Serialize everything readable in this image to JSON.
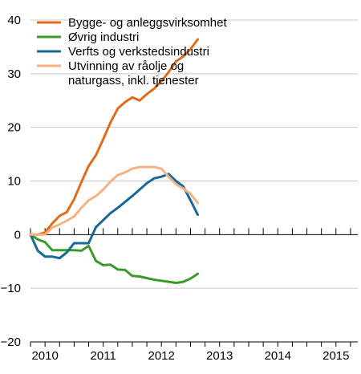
{
  "chart_data": {
    "type": "line",
    "title": "",
    "xlabel": "",
    "ylabel": "",
    "ylim": [
      -20,
      40
    ],
    "y_ticks": [
      -20,
      -10,
      0,
      10,
      20,
      30,
      40
    ],
    "x_range": [
      2009.75,
      2015.375
    ],
    "x_tick_labels": [
      {
        "label": "2010",
        "x": 2010.0
      },
      {
        "label": "2011",
        "x": 2011.0
      },
      {
        "label": "2012",
        "x": 2012.0
      },
      {
        "label": "2013",
        "x": 2013.0
      },
      {
        "label": "2014",
        "x": 2014.0
      },
      {
        "label": "2015",
        "x": 2015.0
      }
    ],
    "grid": "horizontal",
    "legend": "top-left",
    "series": [
      {
        "name": "Bygge- og anleggsvirksomhet",
        "color": "#e06c1a",
        "points": [
          [
            2009.75,
            0
          ],
          [
            2009.875,
            0
          ],
          [
            2010.0,
            0.4
          ],
          [
            2010.125,
            2.1
          ],
          [
            2010.25,
            3.5
          ],
          [
            2010.375,
            4.2
          ],
          [
            2010.5,
            6.6
          ],
          [
            2010.625,
            9.8
          ],
          [
            2010.75,
            12.8
          ],
          [
            2010.875,
            14.8
          ],
          [
            2011.0,
            17.8
          ],
          [
            2011.125,
            20.9
          ],
          [
            2011.25,
            23.5
          ],
          [
            2011.375,
            24.7
          ],
          [
            2011.5,
            25.6
          ],
          [
            2011.625,
            25.0
          ],
          [
            2011.75,
            26.2
          ],
          [
            2011.875,
            27.2
          ],
          [
            2012.0,
            28.6
          ],
          [
            2012.125,
            30.3
          ],
          [
            2012.25,
            32.3
          ],
          [
            2012.375,
            33.2
          ],
          [
            2012.5,
            34.6
          ],
          [
            2012.625,
            36.4
          ]
        ]
      },
      {
        "name": "Øvrig industri",
        "color": "#3a9a2a",
        "points": [
          [
            2009.75,
            0
          ],
          [
            2009.875,
            -0.9
          ],
          [
            2010.0,
            -1.4
          ],
          [
            2010.125,
            -2.9
          ],
          [
            2010.25,
            -2.9
          ],
          [
            2010.375,
            -2.9
          ],
          [
            2010.5,
            -2.9
          ],
          [
            2010.625,
            -3.0
          ],
          [
            2010.75,
            -2.1
          ],
          [
            2010.875,
            -4.9
          ],
          [
            2011.0,
            -5.7
          ],
          [
            2011.125,
            -5.6
          ],
          [
            2011.25,
            -6.5
          ],
          [
            2011.375,
            -6.6
          ],
          [
            2011.5,
            -7.7
          ],
          [
            2011.625,
            -7.8
          ],
          [
            2011.75,
            -8.1
          ],
          [
            2011.875,
            -8.4
          ],
          [
            2012.0,
            -8.6
          ],
          [
            2012.125,
            -8.8
          ],
          [
            2012.25,
            -9.0
          ],
          [
            2012.375,
            -8.8
          ],
          [
            2012.5,
            -8.2
          ],
          [
            2012.625,
            -7.3
          ]
        ]
      },
      {
        "name": "Verfts og verkstedsindustri",
        "color": "#1a6896",
        "points": [
          [
            2009.75,
            0
          ],
          [
            2009.875,
            -3.0
          ],
          [
            2010.0,
            -4.1
          ],
          [
            2010.125,
            -4.1
          ],
          [
            2010.25,
            -4.4
          ],
          [
            2010.375,
            -3.3
          ],
          [
            2010.5,
            -1.6
          ],
          [
            2010.625,
            -1.6
          ],
          [
            2010.75,
            -1.6
          ],
          [
            2010.875,
            1.4
          ],
          [
            2011.0,
            2.7
          ],
          [
            2011.125,
            4.0
          ],
          [
            2011.25,
            5.0
          ],
          [
            2011.375,
            6.1
          ],
          [
            2011.5,
            7.2
          ],
          [
            2011.625,
            8.4
          ],
          [
            2011.75,
            9.6
          ],
          [
            2011.875,
            10.5
          ],
          [
            2012.0,
            10.8
          ],
          [
            2012.125,
            11.3
          ],
          [
            2012.25,
            10.0
          ],
          [
            2012.375,
            9.0
          ],
          [
            2012.5,
            6.4
          ],
          [
            2012.625,
            3.7
          ]
        ]
      },
      {
        "name": "Utvinning av råolje og naturgass, inkl. tjenester",
        "name_lines": [
          "Utvinning av råolje og",
          "naturgass, inkl. tjenester"
        ],
        "color": "#f5b282",
        "points": [
          [
            2009.75,
            0
          ],
          [
            2009.875,
            0
          ],
          [
            2010.0,
            0
          ],
          [
            2010.125,
            1.3
          ],
          [
            2010.25,
            1.9
          ],
          [
            2010.375,
            2.6
          ],
          [
            2010.5,
            3.4
          ],
          [
            2010.625,
            5.0
          ],
          [
            2010.75,
            6.4
          ],
          [
            2010.875,
            7.2
          ],
          [
            2011.0,
            8.4
          ],
          [
            2011.125,
            9.9
          ],
          [
            2011.25,
            11.1
          ],
          [
            2011.375,
            11.6
          ],
          [
            2011.5,
            12.3
          ],
          [
            2011.625,
            12.6
          ],
          [
            2011.75,
            12.6
          ],
          [
            2011.875,
            12.6
          ],
          [
            2012.0,
            12.3
          ],
          [
            2012.125,
            10.8
          ],
          [
            2012.25,
            9.4
          ],
          [
            2012.375,
            8.6
          ],
          [
            2012.5,
            7.6
          ],
          [
            2012.625,
            5.9
          ]
        ]
      }
    ]
  }
}
